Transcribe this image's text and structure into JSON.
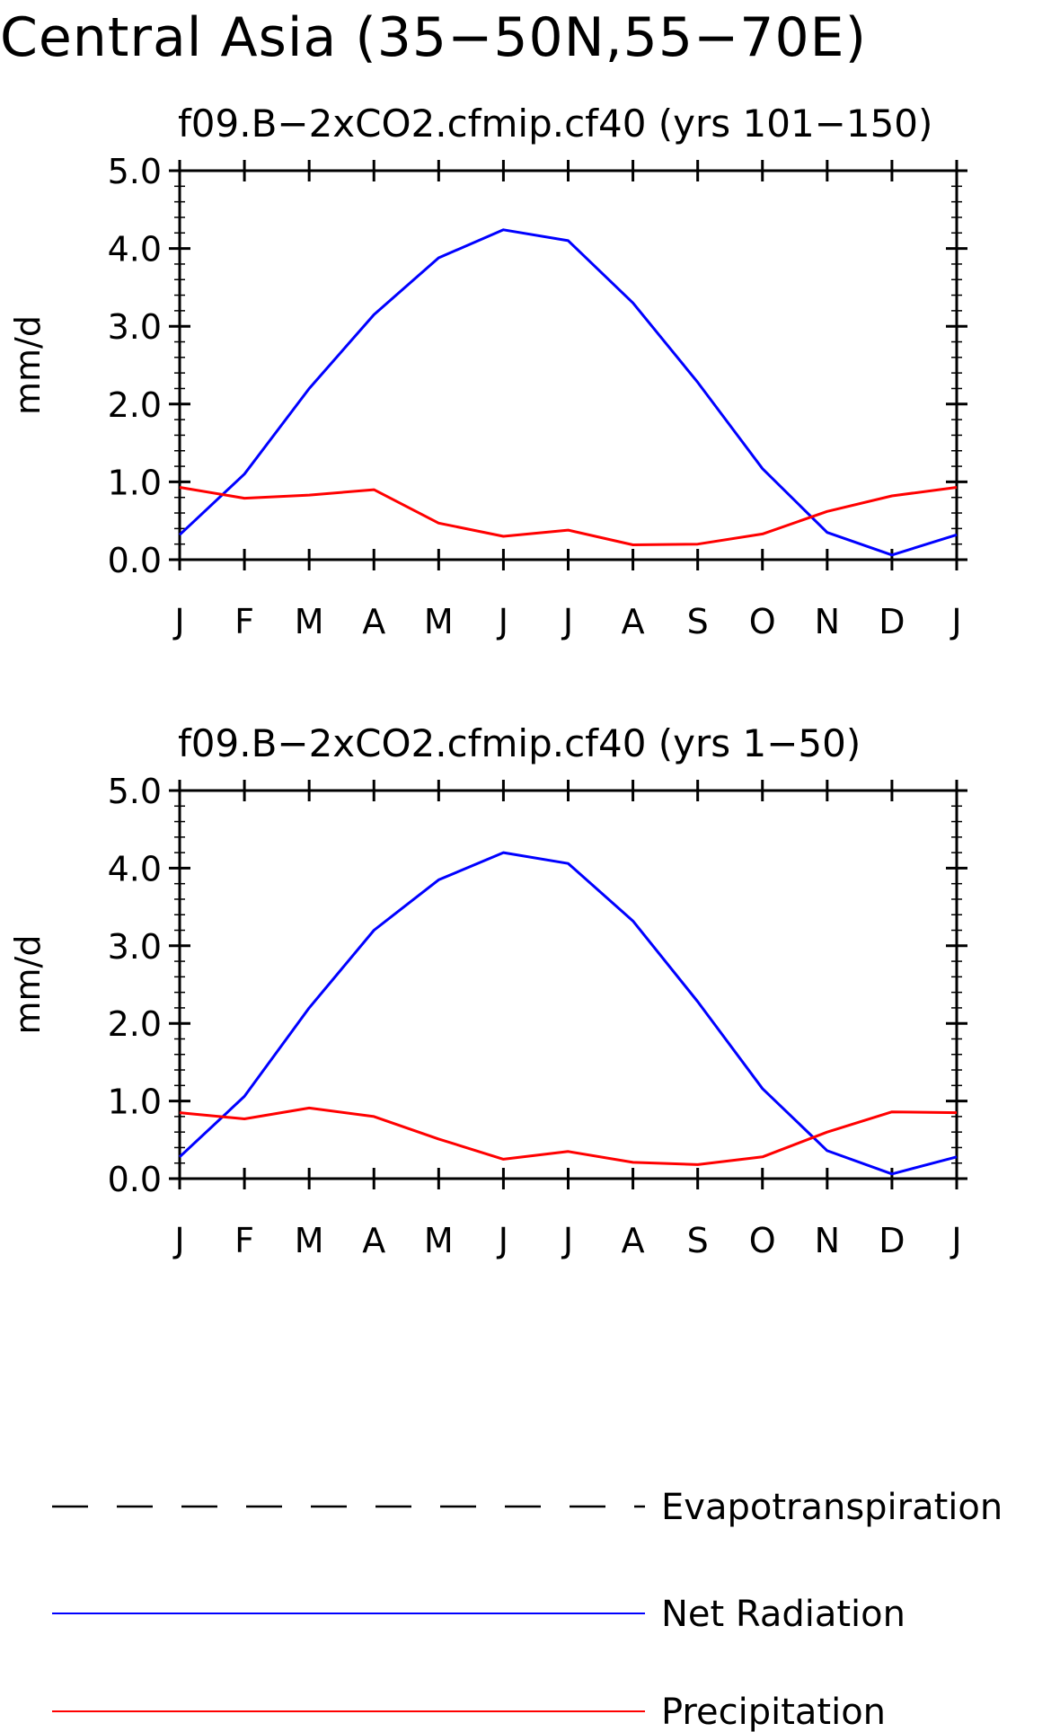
{
  "title": "Central Asia (35−50N,55−70E)",
  "colors": {
    "net_radiation": "#0000ff",
    "precipitation": "#ff0000",
    "evapotranspiration": "#000000"
  },
  "legend": [
    {
      "label": "Evapotranspiration",
      "style": "dashed",
      "color": "#000000"
    },
    {
      "label": "Net Radiation",
      "style": "solid",
      "color": "#0000ff"
    },
    {
      "label": "Precipitation",
      "style": "solid",
      "color": "#ff0000"
    }
  ],
  "chart_data": [
    {
      "type": "line",
      "title": "f09.B−2xCO2.cfmip.cf40 (yrs 101−150)",
      "xlabel": "",
      "ylabel": "mm/d",
      "categories": [
        "J",
        "F",
        "M",
        "A",
        "M",
        "J",
        "J",
        "A",
        "S",
        "O",
        "N",
        "D",
        "J"
      ],
      "yticks": [
        "0.0",
        "1.0",
        "2.0",
        "3.0",
        "4.0",
        "5.0"
      ],
      "ylim": [
        0,
        5
      ],
      "grid": false,
      "legend_position": "bottom",
      "series": [
        {
          "name": "Net Radiation",
          "color": "#0000ff",
          "values": [
            0.32,
            1.1,
            2.2,
            3.15,
            3.88,
            4.24,
            4.1,
            3.3,
            2.28,
            1.17,
            0.35,
            0.06,
            0.32
          ]
        },
        {
          "name": "Precipitation",
          "color": "#ff0000",
          "values": [
            0.93,
            0.79,
            0.83,
            0.9,
            0.47,
            0.3,
            0.38,
            0.19,
            0.2,
            0.33,
            0.62,
            0.82,
            0.93
          ]
        }
      ]
    },
    {
      "type": "line",
      "title": "f09.B−2xCO2.cfmip.cf40 (yrs 1−50)",
      "xlabel": "",
      "ylabel": "mm/d",
      "categories": [
        "J",
        "F",
        "M",
        "A",
        "M",
        "J",
        "J",
        "A",
        "S",
        "O",
        "N",
        "D",
        "J"
      ],
      "yticks": [
        "0.0",
        "1.0",
        "2.0",
        "3.0",
        "4.0",
        "5.0"
      ],
      "ylim": [
        0,
        5
      ],
      "grid": false,
      "legend_position": "bottom",
      "series": [
        {
          "name": "Net Radiation",
          "color": "#0000ff",
          "values": [
            0.28,
            1.06,
            2.2,
            3.2,
            3.85,
            4.2,
            4.06,
            3.32,
            2.28,
            1.16,
            0.36,
            0.06,
            0.28
          ]
        },
        {
          "name": "Precipitation",
          "color": "#ff0000",
          "values": [
            0.85,
            0.77,
            0.91,
            0.8,
            0.51,
            0.25,
            0.35,
            0.21,
            0.18,
            0.28,
            0.6,
            0.86,
            0.85
          ]
        }
      ]
    }
  ]
}
